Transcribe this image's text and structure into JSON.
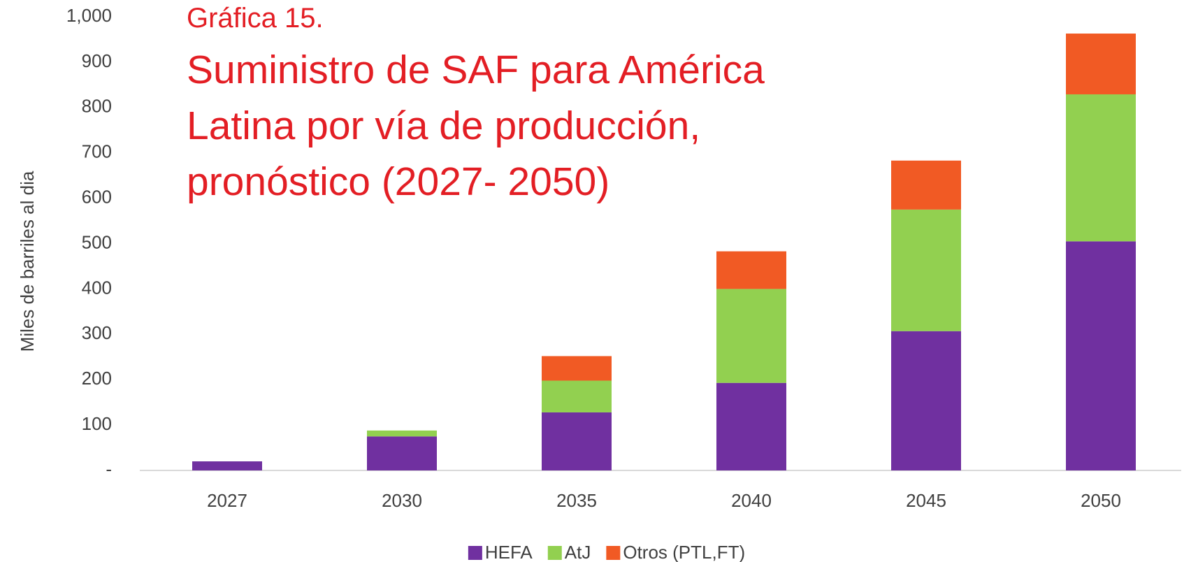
{
  "chart_data": {
    "type": "stacked-bar",
    "subtitle": "Gráfica 15.",
    "title": "Suministro de SAF para América Latina por vía de producción, pronóstico (2027- 2050)",
    "ylabel": "Miles de barriles al dia",
    "categories": [
      "2027",
      "2030",
      "2035",
      "2040",
      "2045",
      "2050"
    ],
    "series": [
      {
        "name": "HEFA",
        "color": "#7030a0",
        "values": [
          20,
          75,
          128,
          193,
          307,
          505
        ]
      },
      {
        "name": "AtJ",
        "color": "#92d050",
        "values": [
          0,
          13,
          70,
          207,
          268,
          324
        ]
      },
      {
        "name": "Otros (PTL,FT)",
        "color": "#f15a24",
        "values": [
          0,
          0,
          54,
          83,
          108,
          134
        ]
      }
    ],
    "ylim": [
      0,
      1000
    ],
    "yticks": [
      {
        "value": 0,
        "label": "-"
      },
      100,
      200,
      300,
      400,
      500,
      600,
      700,
      800,
      900,
      {
        "value": 1000,
        "label": "1,000"
      }
    ],
    "grid": false,
    "legend": "bottom"
  }
}
